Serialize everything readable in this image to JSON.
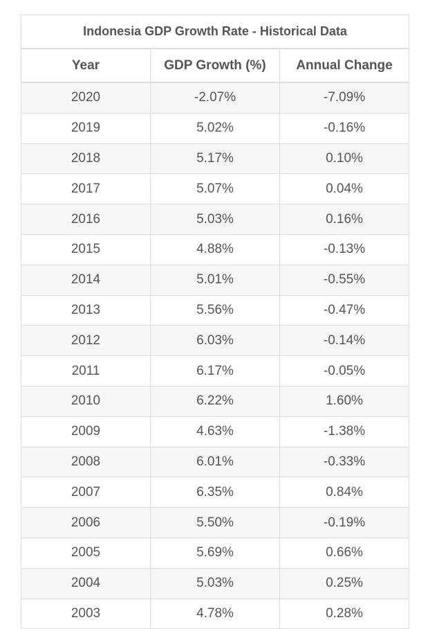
{
  "table": {
    "caption": "Indonesia GDP Growth Rate - Historical Data",
    "headers": [
      "Year",
      "GDP Growth (%)",
      "Annual Change"
    ],
    "rows": [
      [
        "2020",
        "-2.07%",
        "-7.09%"
      ],
      [
        "2019",
        "5.02%",
        "-0.16%"
      ],
      [
        "2018",
        "5.17%",
        "0.10%"
      ],
      [
        "2017",
        "5.07%",
        "0.04%"
      ],
      [
        "2016",
        "5.03%",
        "0.16%"
      ],
      [
        "2015",
        "4.88%",
        "-0.13%"
      ],
      [
        "2014",
        "5.01%",
        "-0.55%"
      ],
      [
        "2013",
        "5.56%",
        "-0.47%"
      ],
      [
        "2012",
        "6.03%",
        "-0.14%"
      ],
      [
        "2011",
        "6.17%",
        "-0.05%"
      ],
      [
        "2010",
        "6.22%",
        "1.60%"
      ],
      [
        "2009",
        "4.63%",
        "-1.38%"
      ],
      [
        "2008",
        "6.01%",
        "-0.33%"
      ],
      [
        "2007",
        "6.35%",
        "0.84%"
      ],
      [
        "2006",
        "5.50%",
        "-0.19%"
      ],
      [
        "2005",
        "5.69%",
        "0.66%"
      ],
      [
        "2004",
        "5.03%",
        "0.25%"
      ],
      [
        "2003",
        "4.78%",
        "0.28%"
      ]
    ]
  }
}
